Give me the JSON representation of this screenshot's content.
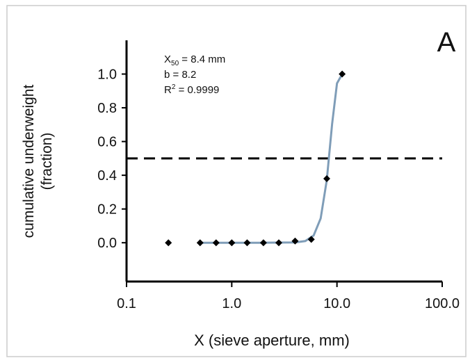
{
  "chart_data": {
    "type": "scatter",
    "panel_label": "A",
    "xlabel": "X (sieve aperture, mm)",
    "ylabel": [
      "cumulative underweight",
      "(fraction)"
    ],
    "annotations": [
      {
        "main": "X",
        "sub": "50",
        "rest": " = 8.4 mm"
      },
      {
        "main": "b =",
        "rest": "   8.2"
      },
      {
        "main": "R",
        "sup": "2",
        "rest": " =  0.9999"
      }
    ],
    "log_x": true,
    "xlim": [
      0.1,
      100
    ],
    "xticks": [
      0.1,
      {
        "value": 1,
        "label": "1.0"
      },
      {
        "value": 10,
        "label": "10.0"
      },
      {
        "value": 100,
        "label": "100.0"
      }
    ],
    "ylim": [
      -0.23,
      1.2
    ],
    "yticks": [
      {
        "value": 0,
        "label": "0.0"
      },
      0.2,
      0.4,
      0.6,
      0.8,
      {
        "value": 1,
        "label": "1.0"
      }
    ],
    "hline": 0.5,
    "series": [
      {
        "kind": "points",
        "color": "#000000",
        "x": [
          0.25,
          0.5,
          0.71,
          1.0,
          1.4,
          2.0,
          2.8,
          4.0,
          5.7,
          8.0,
          11.2
        ],
        "values": [
          0,
          0,
          0,
          0,
          0,
          0,
          0,
          0.01,
          0.02,
          0.38,
          1.0
        ]
      },
      {
        "kind": "curve",
        "color": "#7f9db8",
        "x": [
          0.5,
          1,
          2,
          4,
          5,
          6,
          7,
          8,
          9,
          10,
          11.2
        ],
        "values": [
          0,
          0,
          0,
          0.002,
          0.01,
          0.043,
          0.144,
          0.371,
          0.705,
          0.945,
          0.999
        ]
      }
    ]
  }
}
